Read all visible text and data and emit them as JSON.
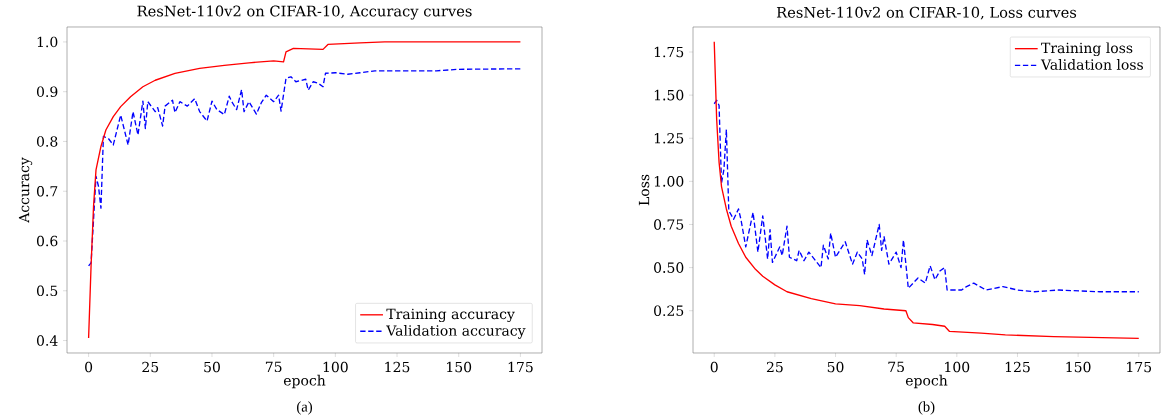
{
  "chart_data": [
    {
      "type": "line",
      "title": "ResNet-110v2 on CIFAR-10, Accuracy curves",
      "xlabel": "epoch",
      "ylabel": "Accuracy",
      "annotations": [
        "(a)"
      ],
      "xlim": [
        -8.75,
        183.75
      ],
      "ylim": [
        0.375,
        1.03
      ],
      "xticks": [
        0,
        25,
        50,
        75,
        100,
        125,
        150,
        175
      ],
      "yticks": [
        0.4,
        0.5,
        0.6,
        0.7,
        0.8,
        0.9,
        {
          "value": 1.0,
          "label": "1.0"
        }
      ],
      "grid": false,
      "legend": "bottom right",
      "series": [
        {
          "name": "Training accuracy",
          "color": "#ff0000",
          "line_style": "solid",
          "x": [
            0,
            1,
            2,
            3,
            5,
            7,
            10,
            13,
            17,
            22,
            27,
            35,
            45,
            55,
            65,
            75,
            79,
            80,
            83,
            95,
            97,
            110,
            120,
            175
          ],
          "values": [
            0.405,
            0.55,
            0.67,
            0.743,
            0.79,
            0.823,
            0.85,
            0.87,
            0.89,
            0.91,
            0.923,
            0.937,
            0.947,
            0.953,
            0.958,
            0.962,
            0.96,
            0.98,
            0.987,
            0.985,
            0.995,
            0.998,
            1.0,
            1.0
          ]
        },
        {
          "name": "Validation accuracy",
          "color": "#0000ff",
          "line_style": "dashed",
          "x": [
            0,
            1,
            3,
            4,
            5,
            6,
            8,
            10,
            11,
            13,
            16,
            18,
            20,
            22,
            23,
            24,
            27,
            28,
            30,
            31,
            34,
            35,
            37,
            40,
            43,
            45,
            48,
            50,
            52,
            55,
            57,
            58,
            60,
            62,
            63,
            65,
            68,
            70,
            72,
            75,
            77,
            78,
            80,
            82,
            84,
            88,
            89,
            91,
            93,
            95,
            96,
            100,
            105,
            110,
            116,
            130,
            141,
            150,
            175
          ],
          "values": [
            0.55,
            0.556,
            0.73,
            0.71,
            0.666,
            0.81,
            0.806,
            0.793,
            0.813,
            0.853,
            0.793,
            0.86,
            0.813,
            0.881,
            0.826,
            0.88,
            0.86,
            0.868,
            0.831,
            0.871,
            0.883,
            0.858,
            0.88,
            0.871,
            0.886,
            0.86,
            0.841,
            0.881,
            0.864,
            0.854,
            0.891,
            0.88,
            0.864,
            0.904,
            0.86,
            0.88,
            0.855,
            0.878,
            0.893,
            0.88,
            0.893,
            0.861,
            0.927,
            0.93,
            0.92,
            0.925,
            0.903,
            0.92,
            0.917,
            0.91,
            0.937,
            0.938,
            0.935,
            0.938,
            0.942,
            0.942,
            0.942,
            0.945,
            0.946
          ]
        }
      ]
    },
    {
      "type": "line",
      "title": "ResNet-110v2 on CIFAR-10, Loss curves",
      "xlabel": "epoch",
      "ylabel": "Loss",
      "annotations": [
        "(b)"
      ],
      "xlim": [
        -8.75,
        183.75
      ],
      "ylim": [
        0.005,
        1.895
      ],
      "xticks": [
        0,
        25,
        50,
        75,
        100,
        125,
        150,
        175
      ],
      "yticks": [
        {
          "value": 0.25,
          "label": "0.25"
        },
        {
          "value": 0.5,
          "label": "0.50"
        },
        {
          "value": 0.75,
          "label": "0.75"
        },
        {
          "value": 1.0,
          "label": "1.00"
        },
        {
          "value": 1.25,
          "label": "1.25"
        },
        {
          "value": 1.5,
          "label": "1.50"
        },
        {
          "value": 1.75,
          "label": "1.75"
        }
      ],
      "grid": false,
      "legend": "top right",
      "series": [
        {
          "name": "Training loss",
          "color": "#ff0000",
          "line_style": "solid",
          "x": [
            0,
            1,
            2,
            3,
            5,
            7,
            10,
            13,
            17,
            20,
            25,
            30,
            40,
            50,
            60,
            70,
            79,
            80,
            82,
            90,
            95,
            97,
            110,
            120,
            140,
            175
          ],
          "values": [
            1.81,
            1.36,
            1.11,
            0.97,
            0.84,
            0.74,
            0.64,
            0.56,
            0.49,
            0.45,
            0.4,
            0.36,
            0.32,
            0.29,
            0.28,
            0.26,
            0.25,
            0.21,
            0.18,
            0.17,
            0.16,
            0.13,
            0.12,
            0.11,
            0.1,
            0.09
          ]
        },
        {
          "name": "Validation loss",
          "color": "#0000ff",
          "line_style": "dashed",
          "x": [
            0,
            1,
            2,
            3,
            4,
            5,
            6,
            8,
            10,
            11,
            13,
            16,
            18,
            20,
            22,
            23,
            24,
            27,
            28,
            30,
            31,
            34,
            35,
            37,
            39,
            44,
            45,
            47,
            48,
            50,
            54,
            57,
            59,
            61,
            62,
            63,
            65,
            68,
            69,
            70,
            72,
            75,
            77,
            78,
            80,
            84,
            87,
            89,
            91,
            93,
            95,
            96,
            102,
            104,
            107,
            112,
            119,
            125,
            132,
            142,
            159,
            175
          ],
          "values": [
            1.45,
            1.47,
            1.44,
            0.99,
            1.07,
            1.3,
            0.83,
            0.78,
            0.84,
            0.78,
            0.62,
            0.82,
            0.59,
            0.8,
            0.55,
            0.72,
            0.53,
            0.62,
            0.57,
            0.74,
            0.56,
            0.54,
            0.6,
            0.54,
            0.59,
            0.5,
            0.63,
            0.55,
            0.7,
            0.56,
            0.65,
            0.52,
            0.59,
            0.55,
            0.46,
            0.66,
            0.57,
            0.75,
            0.6,
            0.68,
            0.52,
            0.59,
            0.5,
            0.66,
            0.38,
            0.44,
            0.41,
            0.51,
            0.43,
            0.48,
            0.5,
            0.37,
            0.37,
            0.39,
            0.41,
            0.37,
            0.39,
            0.37,
            0.36,
            0.37,
            0.36,
            0.36
          ]
        }
      ]
    }
  ]
}
